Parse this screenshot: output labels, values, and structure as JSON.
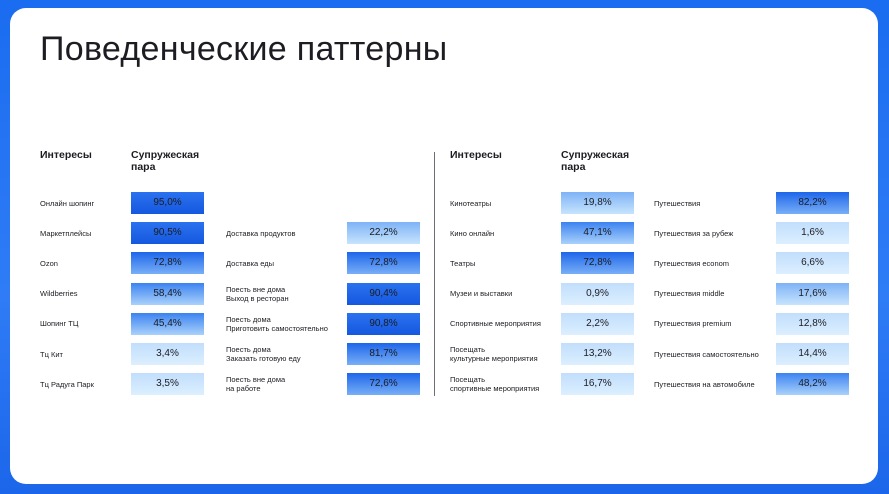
{
  "title": "Поведенческие паттерны",
  "left": {
    "header_interests": "Интересы",
    "header_segment": "Супружеская\nпара",
    "rows": [
      {
        "label": "Онлайн шопинг",
        "value": "95,0%",
        "pct": 95.0
      },
      {
        "label": "Маркетплейсы",
        "value": "90,5%",
        "pct": 90.5
      },
      {
        "label": "Ozon",
        "value": "72,8%",
        "pct": 72.8
      },
      {
        "label": "Wildberries",
        "value": "58,4%",
        "pct": 58.4
      },
      {
        "label": "Шопинг ТЦ",
        "value": "45,4%",
        "pct": 45.4
      },
      {
        "label": "Тц Кит",
        "value": "3,4%",
        "pct": 3.4
      },
      {
        "label": "Тц Радуга Парк",
        "value": "3,5%",
        "pct": 3.5
      }
    ],
    "food_rows": [
      {
        "label": "Доставка продуктов",
        "value": "22,2%",
        "pct": 22.2
      },
      {
        "label": "Доставка еды",
        "value": "72,8%",
        "pct": 72.8
      },
      {
        "label": "Поесть вне дома\nВыход в ресторан",
        "value": "90,4%",
        "pct": 90.4
      },
      {
        "label": "Поесть дома\nПриготовить самостоятельно",
        "value": "90,8%",
        "pct": 90.8
      },
      {
        "label": "Поесть дома\nЗаказать готовую еду",
        "value": "81,7%",
        "pct": 81.7
      },
      {
        "label": "Поесть вне дома\nна работе",
        "value": "72,6%",
        "pct": 72.6
      }
    ]
  },
  "right": {
    "header_interests": "Интересы",
    "header_segment": "Супружеская\nпара",
    "rows": [
      {
        "label": "Кинотеатры",
        "value": "19,8%",
        "pct": 19.8
      },
      {
        "label": "Кино онлайн",
        "value": "47,1%",
        "pct": 47.1
      },
      {
        "label": "Театры",
        "value": "72,8%",
        "pct": 72.8
      },
      {
        "label": "Музеи и выставки",
        "value": "0,9%",
        "pct": 0.9
      },
      {
        "label": "Спортивные мероприятия",
        "value": "2,2%",
        "pct": 2.2
      },
      {
        "label": "Посещать\nкультурные мероприятия",
        "value": "13,2%",
        "pct": 13.2
      },
      {
        "label": "Посещать\nспортивные мероприятия",
        "value": "16,7%",
        "pct": 16.7
      }
    ],
    "travel_rows": [
      {
        "label": "Путешествия",
        "value": "82,2%",
        "pct": 82.2
      },
      {
        "label": "Путешествия за рубеж",
        "value": "1,6%",
        "pct": 1.6
      },
      {
        "label": "Путешествия econom",
        "value": "6,6%",
        "pct": 6.6
      },
      {
        "label": "Путешествия middle",
        "value": "17,6%",
        "pct": 17.6
      },
      {
        "label": "Путешествия premium",
        "value": "12,8%",
        "pct": 12.8
      },
      {
        "label": "Путешествия самостоятельно",
        "value": "14,4%",
        "pct": 14.4
      },
      {
        "label": "Путешествия на автомобиле",
        "value": "48,2%",
        "pct": 48.2
      }
    ]
  }
}
